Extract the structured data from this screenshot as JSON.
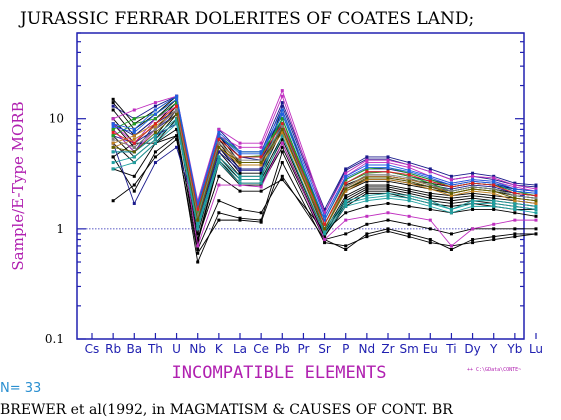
{
  "chart_data": {
    "type": "line",
    "title": "JURASSIC FERRAR DOLERITES OF COATES LAND;",
    "ylabel": "Sample/E-Type MORB",
    "xlabel": "INCOMPATIBLE ELEMENTS",
    "y_scale": "log",
    "ylim": [
      0.1,
      60
    ],
    "y_ticks": [
      0.1,
      1,
      10
    ],
    "y_tick_labels": [
      "0.1",
      "1",
      "10"
    ],
    "reference_line": 1,
    "categories": [
      "Cs",
      "Rb",
      "Ba",
      "Th",
      "U",
      "Nb",
      "K",
      "La",
      "Ce",
      "Pb",
      "Pr",
      "Sr",
      "P",
      "Nd",
      "Zr",
      "Sm",
      "Eu",
      "Ti",
      "Dy",
      "Y",
      "Yb",
      "Lu"
    ],
    "tick_labels": [
      "Cs",
      "Rb",
      "Ba",
      "Th",
      "U",
      "Nb",
      "K",
      "La",
      "Ce",
      "Pb",
      "Pr",
      "Sr",
      "P",
      "Nd",
      "Zr",
      "Sm",
      "Eu",
      "Ti",
      "Dy",
      "Y",
      "Yb",
      "Lu"
    ],
    "n_label": "N= 33",
    "footer": "BREWER et al(1992, in MAGMATISM & CAUSES OF CONT. BR",
    "corner_tag": "++ C:\\GData\\CONTE~",
    "colors": {
      "axes": "#2020b0",
      "title_text": "#000000",
      "label": "#b020b0",
      "n_label": "#2a8fd0",
      "reference_line": "#2020b0"
    },
    "series": [
      {
        "color": "#000000",
        "values": [
          null,
          15,
          9,
          12,
          16,
          1.4,
          7,
          4,
          4,
          12,
          null,
          1.1,
          2.5,
          3.0,
          3.0,
          2.8,
          2.6,
          2.4,
          2.6,
          2.5,
          2.3,
          2.2
        ]
      },
      {
        "color": "#000000",
        "values": [
          null,
          14,
          8,
          11,
          16,
          1.3,
          6.5,
          3.8,
          3.8,
          10,
          null,
          1.0,
          2.3,
          2.8,
          2.8,
          2.6,
          2.4,
          2.2,
          2.4,
          2.3,
          2.1,
          2.0
        ]
      },
      {
        "color": "#000000",
        "values": [
          null,
          12,
          7,
          10,
          15,
          1.2,
          6,
          3.5,
          3.5,
          9,
          null,
          1.0,
          2.2,
          2.7,
          2.7,
          2.5,
          2.3,
          2.1,
          2.3,
          2.2,
          2.0,
          1.9
        ]
      },
      {
        "color": "#000000",
        "values": [
          null,
          10,
          6,
          9,
          14,
          1.1,
          5.5,
          3.2,
          3.2,
          8,
          null,
          0.95,
          2.0,
          2.5,
          2.5,
          2.3,
          2.1,
          2.0,
          2.1,
          2.0,
          1.9,
          1.8
        ]
      },
      {
        "color": "#000000",
        "values": [
          null,
          9,
          5.5,
          8,
          13,
          1.0,
          5,
          3.0,
          3.0,
          7,
          null,
          0.9,
          1.9,
          2.4,
          2.4,
          2.2,
          2.0,
          1.9,
          2.0,
          1.9,
          1.8,
          1.7
        ]
      },
      {
        "color": "#000000",
        "values": [
          null,
          8,
          5,
          7,
          12,
          0.9,
          4.5,
          2.8,
          2.8,
          6.5,
          null,
          0.9,
          1.8,
          2.3,
          2.3,
          2.1,
          1.9,
          1.8,
          1.9,
          1.8,
          1.7,
          1.6
        ]
      },
      {
        "color": "#000000",
        "values": [
          null,
          7,
          4.5,
          6.5,
          11,
          0.8,
          4.2,
          2.6,
          2.6,
          6,
          null,
          0.85,
          1.7,
          2.2,
          2.2,
          2.0,
          1.8,
          1.7,
          1.8,
          1.7,
          1.6,
          1.5
        ]
      },
      {
        "color": "#000000",
        "values": [
          null,
          6,
          4,
          6,
          10,
          0.75,
          4,
          2.5,
          2.5,
          5.5,
          null,
          0.85,
          1.6,
          2.1,
          2.1,
          1.9,
          1.7,
          1.6,
          1.7,
          1.6,
          1.5,
          1.5
        ]
      },
      {
        "color": "#000000",
        "values": [
          null,
          4.5,
          2.2,
          5,
          7,
          0.5,
          1.4,
          1.25,
          1.2,
          5,
          null,
          0.8,
          0.65,
          0.9,
          1.0,
          0.9,
          0.8,
          0.65,
          0.8,
          0.85,
          0.9,
          0.9
        ]
      },
      {
        "color": "#000000",
        "values": [
          null,
          1.8,
          2.5,
          4.5,
          6.5,
          0.6,
          1.2,
          1.2,
          1.15,
          4,
          null,
          0.75,
          0.7,
          0.85,
          0.95,
          0.85,
          0.75,
          0.7,
          0.75,
          0.8,
          0.85,
          0.9
        ]
      },
      {
        "color": "#000000",
        "values": [
          null,
          3.5,
          3,
          6,
          8,
          0.65,
          1.8,
          1.5,
          1.4,
          3,
          null,
          0.8,
          0.9,
          1.1,
          1.2,
          1.1,
          1.0,
          0.9,
          1.0,
          1.0,
          1.0,
          1.0
        ]
      },
      {
        "color": "#000000",
        "values": [
          null,
          4.5,
          6,
          6,
          7,
          0.8,
          3,
          2.2,
          2.2,
          2.8,
          null,
          0.95,
          1.4,
          1.6,
          1.7,
          1.6,
          1.5,
          1.4,
          1.5,
          1.5,
          1.4,
          1.3
        ]
      },
      {
        "color": "#1a1a8c",
        "values": [
          null,
          13,
          10,
          13,
          16,
          1.6,
          8,
          5,
          5,
          14,
          null,
          1.5,
          3.5,
          4.5,
          4.5,
          4.0,
          3.5,
          3.0,
          3.2,
          3.0,
          2.6,
          2.5
        ]
      },
      {
        "color": "#1a1a8c",
        "values": [
          null,
          6,
          1.7,
          4,
          5.5,
          1.3,
          7,
          4.5,
          4.5,
          13,
          null,
          1.4,
          3.4,
          4.3,
          4.3,
          3.8,
          3.3,
          2.8,
          3.0,
          2.8,
          2.5,
          2.4
        ]
      },
      {
        "color": "#1a1a8c",
        "values": [
          null,
          8,
          5,
          9,
          12,
          1.2,
          6.5,
          4.5,
          4.2,
          11,
          null,
          1.2,
          2.8,
          3.5,
          3.5,
          3.2,
          2.8,
          2.5,
          2.7,
          2.6,
          2.3,
          2.2
        ]
      },
      {
        "color": "#1a1a8c",
        "values": [
          null,
          7,
          6,
          8,
          11,
          1.1,
          6,
          4,
          4,
          10,
          null,
          1.1,
          2.6,
          3.3,
          3.3,
          3.0,
          2.7,
          2.4,
          2.6,
          2.5,
          2.2,
          2.1
        ]
      },
      {
        "color": "#1a1a8c",
        "values": [
          null,
          9,
          7,
          10,
          14,
          1.0,
          5.5,
          3.5,
          3.5,
          9,
          null,
          1.0,
          2.4,
          3.0,
          3.0,
          2.8,
          2.5,
          2.3,
          2.5,
          2.4,
          2.1,
          2.0
        ]
      },
      {
        "color": "#1a1a8c",
        "values": [
          null,
          5,
          5,
          7,
          9,
          1.0,
          5,
          3.4,
          3.4,
          8.5,
          null,
          1.0,
          2.3,
          2.9,
          2.9,
          2.7,
          2.4,
          2.2,
          2.4,
          2.3,
          2.0,
          1.9
        ]
      },
      {
        "color": "#c030c0",
        "values": [
          null,
          10,
          12,
          14,
          16,
          1.8,
          8,
          6,
          6,
          18,
          null,
          1.4,
          3.2,
          4.2,
          4.2,
          3.8,
          3.3,
          2.8,
          3.0,
          2.9,
          2.5,
          2.3
        ]
      },
      {
        "color": "#c030c0",
        "values": [
          null,
          9,
          6,
          10,
          13,
          1.6,
          7,
          5.5,
          5.5,
          16,
          null,
          1.3,
          3.0,
          4.0,
          4.0,
          3.6,
          3.0,
          2.6,
          2.8,
          2.7,
          2.4,
          2.2
        ]
      },
      {
        "color": "#c030c0",
        "values": [
          null,
          8,
          5,
          8,
          12,
          0.7,
          2.5,
          2.5,
          2.4,
          6,
          null,
          0.8,
          1.2,
          1.3,
          1.4,
          1.3,
          1.2,
          0.7,
          1.0,
          1.1,
          1.2,
          1.2
        ]
      },
      {
        "color": "#20a0a0",
        "values": [
          null,
          3.5,
          4,
          6,
          9,
          1.0,
          4,
          2.6,
          2.6,
          7,
          null,
          0.9,
          1.6,
          1.8,
          1.9,
          1.8,
          1.6,
          1.4,
          1.6,
          1.6,
          1.5,
          1.4
        ]
      },
      {
        "color": "#20a0a0",
        "values": [
          null,
          5,
          5,
          7,
          10,
          1.1,
          4.5,
          3,
          3,
          12,
          null,
          1.0,
          1.8,
          2.0,
          2.1,
          2.0,
          1.8,
          1.5,
          1.8,
          1.8,
          1.7,
          1.6
        ]
      },
      {
        "color": "#20a0a0",
        "values": [
          null,
          4,
          4.5,
          6.5,
          9.5,
          1.05,
          4.2,
          2.8,
          2.8,
          10,
          null,
          0.95,
          1.7,
          1.9,
          2.0,
          1.9,
          1.7,
          1.5,
          1.7,
          1.7,
          1.6,
          1.5
        ]
      },
      {
        "color": "#20a020",
        "values": [
          null,
          8,
          10,
          11,
          15,
          1.5,
          7,
          5,
          5,
          9,
          null,
          1.2,
          2.8,
          3.5,
          3.6,
          3.2,
          2.8,
          2.4,
          2.6,
          2.5,
          2.2,
          2.0
        ]
      },
      {
        "color": "#20a020",
        "values": [
          null,
          7,
          9,
          10,
          14,
          1.4,
          6.5,
          4.5,
          4.6,
          10,
          null,
          1.1,
          2.6,
          3.2,
          3.3,
          3.0,
          2.6,
          2.2,
          2.4,
          2.3,
          2.0,
          1.9
        ]
      },
      {
        "color": "#c08020",
        "values": [
          null,
          6,
          7,
          9,
          13,
          1.3,
          6,
          4,
          4,
          8,
          null,
          1.1,
          2.4,
          3.0,
          3.0,
          2.8,
          2.5,
          2.1,
          2.3,
          2.2,
          1.9,
          1.8
        ]
      },
      {
        "color": "#c08020",
        "values": [
          null,
          5.5,
          6.5,
          8.5,
          12,
          1.2,
          5.5,
          3.8,
          3.8,
          7.5,
          null,
          1.0,
          2.2,
          2.8,
          2.8,
          2.6,
          2.3,
          2.0,
          2.2,
          2.1,
          1.8,
          1.7
        ]
      },
      {
        "color": "#2060e0",
        "values": [
          null,
          9,
          8,
          12,
          16,
          1.7,
          7.5,
          5,
          5,
          12,
          null,
          1.3,
          3.0,
          3.8,
          3.8,
          3.4,
          3.0,
          2.6,
          2.8,
          2.7,
          2.3,
          2.2
        ]
      },
      {
        "color": "#2060e0",
        "values": [
          null,
          8.5,
          7.5,
          11,
          15,
          1.6,
          7,
          4.8,
          4.8,
          11,
          null,
          1.2,
          2.9,
          3.6,
          3.6,
          3.3,
          2.9,
          2.5,
          2.7,
          2.6,
          2.2,
          2.1
        ]
      },
      {
        "color": "#e02020",
        "values": [
          null,
          7.5,
          6,
          9,
          13,
          1.5,
          6.5,
          4.5,
          4.5,
          9,
          null,
          1.1,
          2.6,
          3.3,
          3.3,
          3.1,
          2.7,
          2.4,
          2.6,
          2.5,
          2.1,
          2.0
        ]
      },
      {
        "color": "#808080",
        "values": [
          null,
          6.5,
          5.5,
          8,
          12,
          1.3,
          6,
          4.2,
          4.2,
          8.5,
          null,
          1.0,
          2.4,
          3.1,
          3.1,
          2.9,
          2.5,
          2.2,
          2.4,
          2.3,
          2.0,
          1.9
        ]
      },
      {
        "color": "#606000",
        "values": [
          null,
          5.5,
          5,
          7.5,
          11,
          1.2,
          5.5,
          4,
          4,
          8,
          null,
          1.0,
          2.3,
          2.9,
          2.9,
          2.7,
          2.4,
          2.1,
          2.3,
          2.2,
          1.9,
          1.8
        ]
      }
    ]
  }
}
